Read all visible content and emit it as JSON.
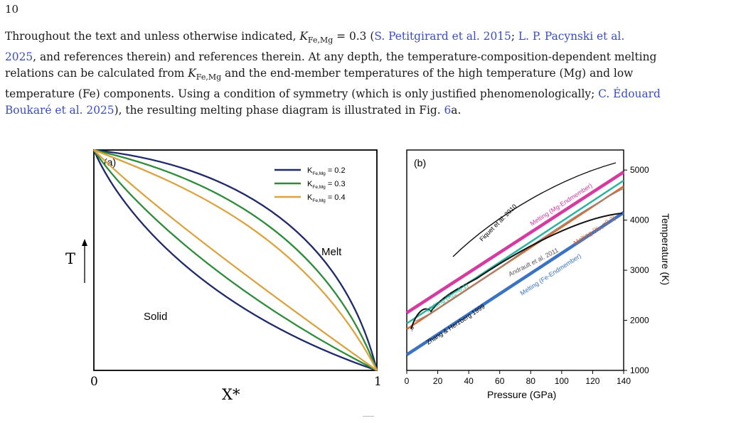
{
  "page": {
    "number": "10"
  },
  "paragraph": {
    "line1_pre": "Throughout the text and unless otherwise indicated, ",
    "k_main": "K",
    "k_sub": "Fe,Mg",
    "k_eq": " = 0.3 (",
    "cite1": "S. Petitgirard et al. 2015",
    "sep1": "; ",
    "cite2a": "L. P. Pacynski et al.",
    "cite2b": "2025",
    "line2_mid": ", and references therein) and references therein. At any depth, the temperature-composition-dependent melting",
    "line3_pre": "relations can be calculated from ",
    "line3_post": " and the end-member temperatures of the high temperature (Mg) and low",
    "line4_pre": "temperature (Fe) components. Using a condition of symmetry (which is only justified phenomenologically; ",
    "cite3a": "C. Édouard",
    "cite3b": "Boukaré et al. 2025",
    "line5_mid": "), the resulting melting phase diagram is illustrated in Fig. ",
    "fig_ref": "6",
    "line5_end": "a."
  },
  "panel_a": {
    "label": "(a)",
    "y_axis_label": "T",
    "x_axis_label": "X*",
    "x_tick_left": "0",
    "x_tick_right": "1",
    "region_melt": "Melt",
    "region_solid": "Solid",
    "legend": [
      {
        "prefix": "K",
        "sub": "Fe,Mg",
        "value": " = 0.2",
        "color": "#1f2a6b"
      },
      {
        "prefix": "K",
        "sub": "Fe,Mg",
        "value": " = 0.3",
        "color": "#2e8b3a"
      },
      {
        "prefix": "K",
        "sub": "Fe,Mg",
        "value": " = 0.4",
        "color": "#d9a441"
      }
    ]
  },
  "panel_b": {
    "label": "(b)",
    "x_axis_label": "Pressure (GPa)",
    "y_axis_label": "Temperature (K)",
    "x_ticks": [
      "0",
      "20",
      "40",
      "60",
      "80",
      "100",
      "120",
      "140"
    ],
    "y_ticks": [
      "1000",
      "2000",
      "3000",
      "4000",
      "5000"
    ],
    "x_range": [
      0,
      140
    ],
    "y_range": [
      1000,
      5400
    ],
    "curve_labels": {
      "fiquet": "Fiquet et al. 2010",
      "mg_end": "Melting (Mg-Endmember)",
      "xfe02_pre": "Melting (X",
      "xfe02_sub": "Fe",
      "xfe02_post": "=0.2)",
      "xfe01_pre": "Melting (X",
      "xfe01_sub": "Fe",
      "xfe01_post": "=0.1)",
      "andrault": "Andrault et al. 2011",
      "zhang": "Zhang & Herzberg 1999",
      "fe_end": "Melting (Fe-Endmember)",
      "question": "?"
    },
    "colors": {
      "mg_end": "#d63aa0",
      "xfe01": "#2bb39b",
      "xfe02": "#e0672c",
      "fe_end": "#3a72c4",
      "andrault": "#8a8a8a",
      "fiquet": "#111111",
      "zhang": "#111111"
    }
  }
}
